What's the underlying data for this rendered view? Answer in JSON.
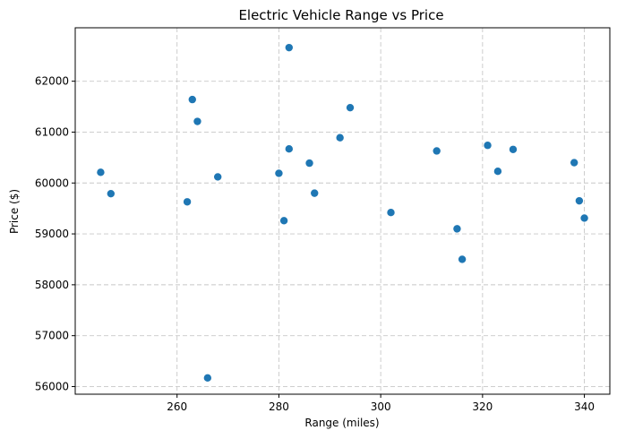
{
  "chart_data": {
    "type": "scatter",
    "title": "Electric Vehicle Range vs Price",
    "xlabel": "Range (miles)",
    "ylabel": "Price ($)",
    "xlim": [
      240,
      345
    ],
    "ylim": [
      55850,
      63050
    ],
    "xticks": [
      260,
      280,
      300,
      320,
      340
    ],
    "yticks": [
      56000,
      57000,
      58000,
      59000,
      60000,
      61000,
      62000
    ],
    "grid": true,
    "point_color": "#1f77b4",
    "points": [
      {
        "x": 245,
        "y": 60210
      },
      {
        "x": 247,
        "y": 59790
      },
      {
        "x": 262,
        "y": 59630
      },
      {
        "x": 263,
        "y": 61640
      },
      {
        "x": 264,
        "y": 61210
      },
      {
        "x": 266,
        "y": 56170
      },
      {
        "x": 268,
        "y": 60120
      },
      {
        "x": 280,
        "y": 60190
      },
      {
        "x": 281,
        "y": 59260
      },
      {
        "x": 282,
        "y": 62660
      },
      {
        "x": 282,
        "y": 60670
      },
      {
        "x": 286,
        "y": 60390
      },
      {
        "x": 287,
        "y": 59800
      },
      {
        "x": 292,
        "y": 60890
      },
      {
        "x": 294,
        "y": 61480
      },
      {
        "x": 302,
        "y": 59420
      },
      {
        "x": 311,
        "y": 60630
      },
      {
        "x": 315,
        "y": 59100
      },
      {
        "x": 316,
        "y": 58500
      },
      {
        "x": 321,
        "y": 60740
      },
      {
        "x": 323,
        "y": 60230
      },
      {
        "x": 326,
        "y": 60660
      },
      {
        "x": 338,
        "y": 60400
      },
      {
        "x": 339,
        "y": 59650
      },
      {
        "x": 340,
        "y": 59310
      }
    ]
  }
}
